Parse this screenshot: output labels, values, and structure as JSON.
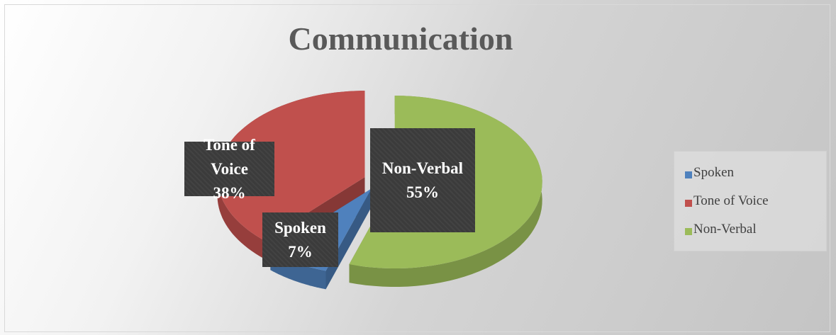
{
  "chart_data": {
    "type": "pie",
    "title": "Communication",
    "categories": [
      "Spoken",
      "Tone of Voice",
      "Non-Verbal"
    ],
    "values": [
      7,
      38,
      55
    ],
    "value_labels": [
      "7%",
      "38%",
      "55%"
    ],
    "colors": [
      "#4f81bd",
      "#c0504d",
      "#9bbb59"
    ],
    "legend": "right"
  }
}
